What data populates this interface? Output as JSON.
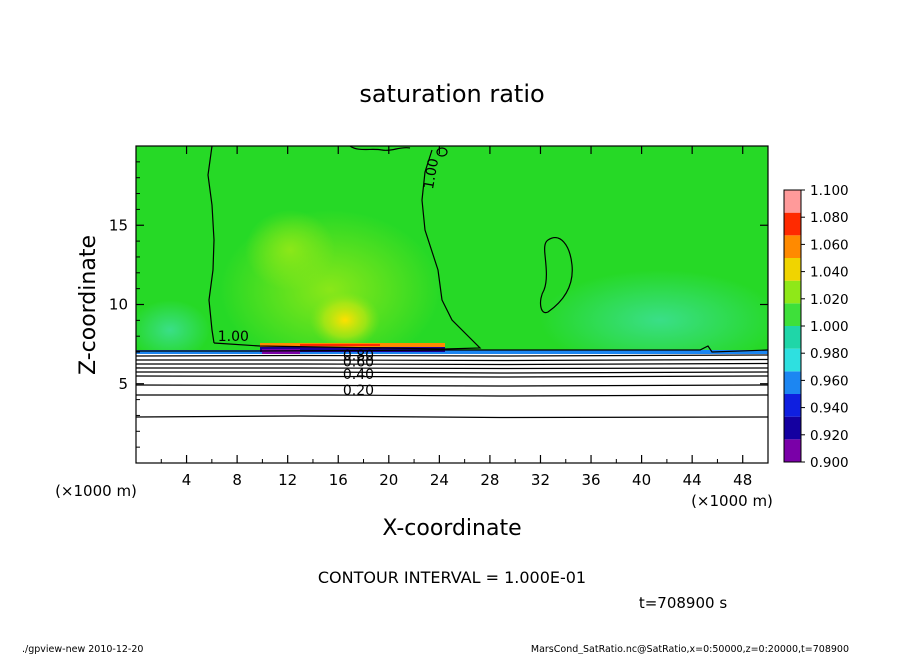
{
  "chart_data": {
    "type": "heatmap",
    "title": "saturation ratio",
    "xlabel": "X-coordinate",
    "ylabel": "Z-coordinate",
    "x_unit": "(×1000 m)",
    "y_unit": "(×1000 m)",
    "xlim": [
      0,
      50
    ],
    "ylim": [
      0,
      20
    ],
    "xticks": [
      4,
      8,
      12,
      16,
      20,
      24,
      28,
      32,
      36,
      40,
      44,
      48
    ],
    "yticks": [
      5,
      10,
      15
    ],
    "colorbar": {
      "levels": [
        0.9,
        0.92,
        0.94,
        0.96,
        0.98,
        1.0,
        1.02,
        1.04,
        1.06,
        1.08,
        1.1
      ],
      "labels": [
        "0.900",
        "0.920",
        "0.940",
        "0.960",
        "0.980",
        "1.000",
        "1.020",
        "1.040",
        "1.060",
        "1.080",
        "1.100"
      ],
      "colors": [
        "#7a00a8",
        "#1400a0",
        "#0f1fe0",
        "#1c86f2",
        "#2ee0e0",
        "#1fd6a8",
        "#3ee03a",
        "#8fe818",
        "#f0d400",
        "#ff8a00",
        "#ff2a00",
        "#ff9a9a"
      ]
    },
    "contour_labels": [
      {
        "text": "1.00",
        "x": 23.7,
        "z": 18.2,
        "angle": -80
      },
      {
        "text": "1.00",
        "x": 7.7,
        "z": 7.7,
        "angle": 0
      },
      {
        "text": "0.80",
        "x": 17.6,
        "z": 6.5,
        "angle": 0
      },
      {
        "text": "0.60",
        "x": 17.6,
        "z": 6.1,
        "angle": 0
      },
      {
        "text": "0.40",
        "x": 17.6,
        "z": 5.3,
        "angle": 0
      },
      {
        "text": "0.20",
        "x": 17.6,
        "z": 4.3,
        "angle": 0
      }
    ],
    "contour_interval_text": "CONTOUR INTERVAL = 1.000E-01",
    "time_text": "t=708900 s"
  },
  "footer": {
    "left": "./gpview-new   2010-12-20",
    "right": "MarsCond_SatRatio.nc@SatRatio,x=0:50000,z=0:20000,t=708900"
  },
  "colors": {
    "background_green": "#26d926",
    "line": "#000000"
  }
}
